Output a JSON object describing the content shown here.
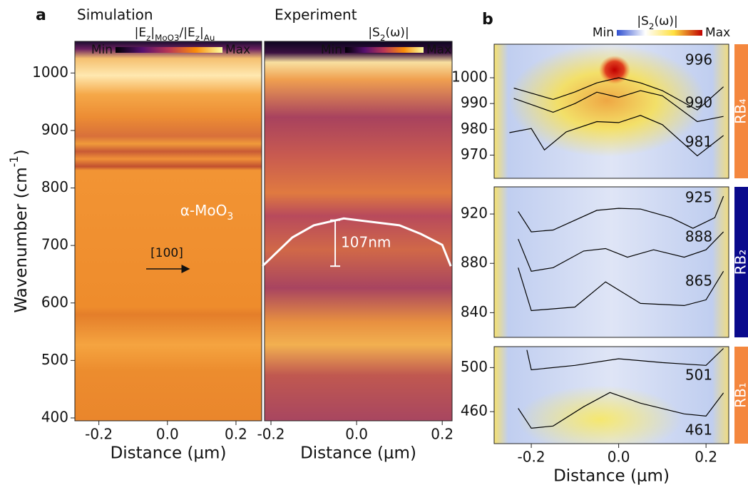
{
  "chart_data": [
    {
      "type": "heatmap",
      "panel": "a",
      "title": "Simulation",
      "colorbar": {
        "label": [
          {
            "text": "|E"
          },
          {
            "text": "z",
            "sub": true
          },
          {
            "text": "|"
          },
          {
            "text": "MoO3",
            "sub": true
          },
          {
            "text": "/|E"
          },
          {
            "text": "z",
            "sub": true
          },
          {
            "text": "|"
          },
          {
            "text": "Au",
            "sub": true
          }
        ],
        "min": "Min",
        "max": "Max",
        "colors": [
          "#000004",
          "#56106e",
          "#bb3754",
          "#f98c0a",
          "#fcffa4"
        ]
      },
      "xlabel": "Distance (μm)",
      "ylabel": [
        {
          "text": "Wavenumber (cm"
        },
        {
          "text": "-1",
          "sup": true
        },
        {
          "text": ")"
        }
      ],
      "xlim": [
        -0.27,
        0.275
      ],
      "ylim": [
        395,
        1055
      ],
      "xticks": [
        -0.2,
        {
          "value": 0,
          "label": "0.0"
        },
        0.2
      ],
      "yticks": [
        400,
        500,
        600,
        700,
        800,
        900,
        1000
      ],
      "annotations": [
        [
          {
            "text": "α-MoO"
          },
          {
            "text": "3",
            "sub": true
          }
        ],
        "[100]"
      ]
    },
    {
      "type": "heatmap",
      "title": "Experiment",
      "colorbar": {
        "label": [
          {
            "text": "|S"
          },
          {
            "text": "2",
            "sub": true
          },
          {
            "text": "(ω)|"
          }
        ],
        "min": "Min",
        "max": "Max",
        "colors": [
          "#000004",
          "#56106e",
          "#bb3754",
          "#f98c0a",
          "#fcffa4"
        ]
      },
      "xlabel": "Distance (μm)",
      "xlim": [
        -0.215,
        0.223
      ],
      "ylim": [
        395,
        1055
      ],
      "xticks": [
        -0.2,
        {
          "value": 0,
          "label": "0.0"
        },
        0.2
      ],
      "series": [
        {
          "color": "#ffffff",
          "x": [
            -0.22,
            -0.15,
            -0.1,
            -0.03,
            0.1,
            0.15,
            0.2,
            0.22
          ],
          "values": [
            664,
            714,
            735,
            747,
            735,
            720,
            701,
            664
          ]
        }
      ],
      "interval": {
        "x": -0.05,
        "values": [
          664,
          744
        ],
        "label": "107nm"
      }
    },
    {
      "type": "heatmap",
      "panel": "b",
      "colorbar": {
        "label": [
          {
            "text": "|S"
          },
          {
            "text": "2",
            "sub": true
          },
          {
            "text": "(ω)|"
          }
        ],
        "min": "Min",
        "max": "Max",
        "colors": [
          "#3050d0",
          "#ffffff",
          "#ffe040",
          "#c00000"
        ]
      },
      "side_label": "RB₄",
      "side_color": "#f4873e",
      "xlim": [
        -0.285,
        0.252
      ],
      "ylim": [
        961,
        1013
      ],
      "yticks": [
        970,
        980,
        990,
        1000
      ],
      "series": [
        {
          "label": 996,
          "color": "#000000",
          "x": [
            -0.24,
            -0.15,
            -0.1,
            -0.05,
            0,
            0.05,
            0.1,
            0.18,
            0.24
          ],
          "values": [
            996,
            991.6,
            994.5,
            998,
            1000,
            998,
            995,
            987.5,
            996.5
          ]
        },
        {
          "label": 990,
          "color": "#000000",
          "x": [
            -0.24,
            -0.15,
            -0.1,
            -0.05,
            0,
            0.05,
            0.1,
            0.18,
            0.24
          ],
          "values": [
            992,
            986.6,
            990,
            994.4,
            992.4,
            995,
            993,
            983,
            985
          ]
        },
        {
          "label": 981,
          "color": "#000000",
          "x": [
            -0.25,
            -0.2,
            -0.17,
            -0.12,
            -0.05,
            0,
            0.05,
            0.1,
            0.18,
            0.24
          ],
          "values": [
            978.7,
            980.3,
            972,
            979,
            983,
            982.6,
            985.4,
            981.8,
            969.7,
            977.6
          ]
        }
      ]
    },
    {
      "type": "heatmap",
      "side_label": "RB₂",
      "side_color": "#0a0a8c",
      "xlim": [
        -0.285,
        0.252
      ],
      "ylim": [
        820,
        942
      ],
      "yticks": [
        840,
        880,
        920
      ],
      "series": [
        {
          "label": 925,
          "color": "#000000",
          "x": [
            -0.23,
            -0.2,
            -0.15,
            -0.05,
            0,
            0.05,
            0.12,
            0.17,
            0.22,
            0.24
          ],
          "values": [
            922,
            905.5,
            907,
            923,
            924.6,
            924,
            917,
            908.4,
            917,
            934.5
          ]
        },
        {
          "label": 888,
          "color": "#000000",
          "x": [
            -0.23,
            -0.2,
            -0.15,
            -0.08,
            -0.03,
            0.02,
            0.08,
            0.15,
            0.2,
            0.24
          ],
          "values": [
            899.7,
            873.6,
            876.5,
            890,
            892,
            885,
            891,
            885,
            891,
            905.5
          ]
        },
        {
          "label": 865,
          "color": "#000000",
          "x": [
            -0.23,
            -0.2,
            -0.1,
            -0.03,
            0.05,
            0.15,
            0.2,
            0.24
          ],
          "values": [
            876.5,
            841.7,
            844.6,
            865,
            847.5,
            845.8,
            850.4,
            873.6
          ]
        }
      ]
    },
    {
      "type": "heatmap",
      "side_label": "RB₁",
      "side_color": "#f4873e",
      "xlabel": "Distance (μm)",
      "xlim": [
        -0.285,
        0.252
      ],
      "ylim": [
        431,
        519
      ],
      "yticks": [
        460,
        500
      ],
      "xticks": [
        -0.2,
        {
          "value": 0,
          "label": "0.0"
        },
        0.2
      ],
      "series": [
        {
          "label": 501,
          "color": "#000000",
          "x": [
            -0.21,
            -0.2,
            -0.1,
            0,
            0.1,
            0.2,
            0.24
          ],
          "values": [
            516,
            498,
            502,
            508,
            504.5,
            502,
            517.4
          ]
        },
        {
          "label": 461,
          "color": "#000000",
          "x": [
            -0.23,
            -0.2,
            -0.15,
            -0.08,
            -0.02,
            0.05,
            0.15,
            0.2,
            0.24
          ],
          "values": [
            463,
            445,
            447,
            464.5,
            477.4,
            467.7,
            458,
            456,
            477
          ]
        }
      ]
    }
  ]
}
